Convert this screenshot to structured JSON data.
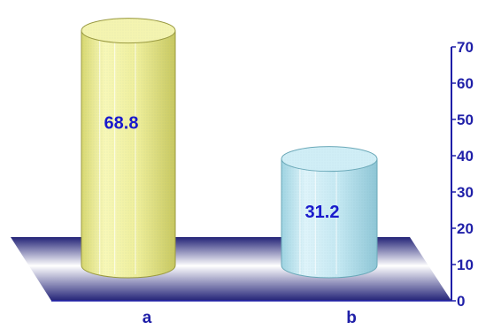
{
  "chart_data": {
    "type": "bar",
    "style": "3d-cylinder",
    "categories": [
      "a",
      "b"
    ],
    "values": [
      68.8,
      31.2
    ],
    "value_labels": [
      "68.8",
      "31.2"
    ],
    "title": "",
    "xlabel": "",
    "ylabel": "",
    "ylim": [
      0,
      70
    ],
    "yticks": [
      0,
      10,
      20,
      30,
      40,
      50,
      60,
      70
    ],
    "y_axis_side": "right",
    "grid": false,
    "legend": "none",
    "colors": {
      "bar_a": "#f0f098",
      "bar_b": "#bfe6f0",
      "floor_dark": "#232377",
      "floor_light": "#ffffff",
      "axis": "#1f1fa8",
      "label_text": "#1a1acc"
    }
  }
}
